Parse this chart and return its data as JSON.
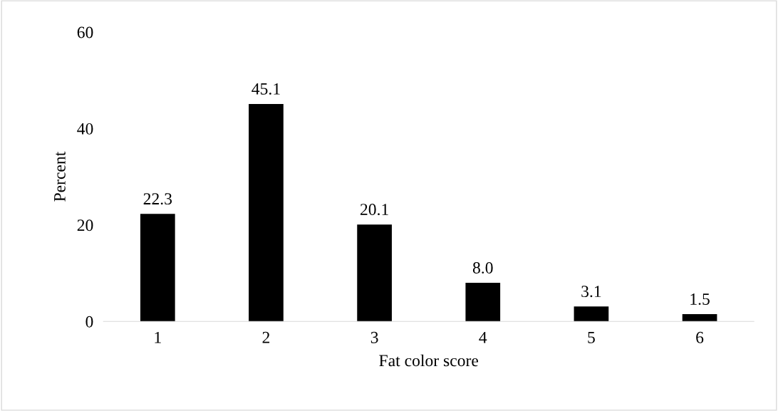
{
  "chart_data": {
    "type": "bar",
    "xlabel": "Fat color score",
    "ylabel": "Percent",
    "categories": [
      "1",
      "2",
      "3",
      "4",
      "5",
      "6"
    ],
    "values": [
      22.3,
      45.1,
      20.1,
      8.0,
      3.1,
      1.5
    ],
    "value_labels": [
      "22.3",
      "45.1",
      "20.1",
      "8.0",
      "3.1",
      "1.5"
    ],
    "color": "#000000",
    "ylim": [
      0,
      60
    ],
    "yticks": [
      0,
      20,
      40,
      60
    ],
    "grid": false,
    "legend": false
  }
}
